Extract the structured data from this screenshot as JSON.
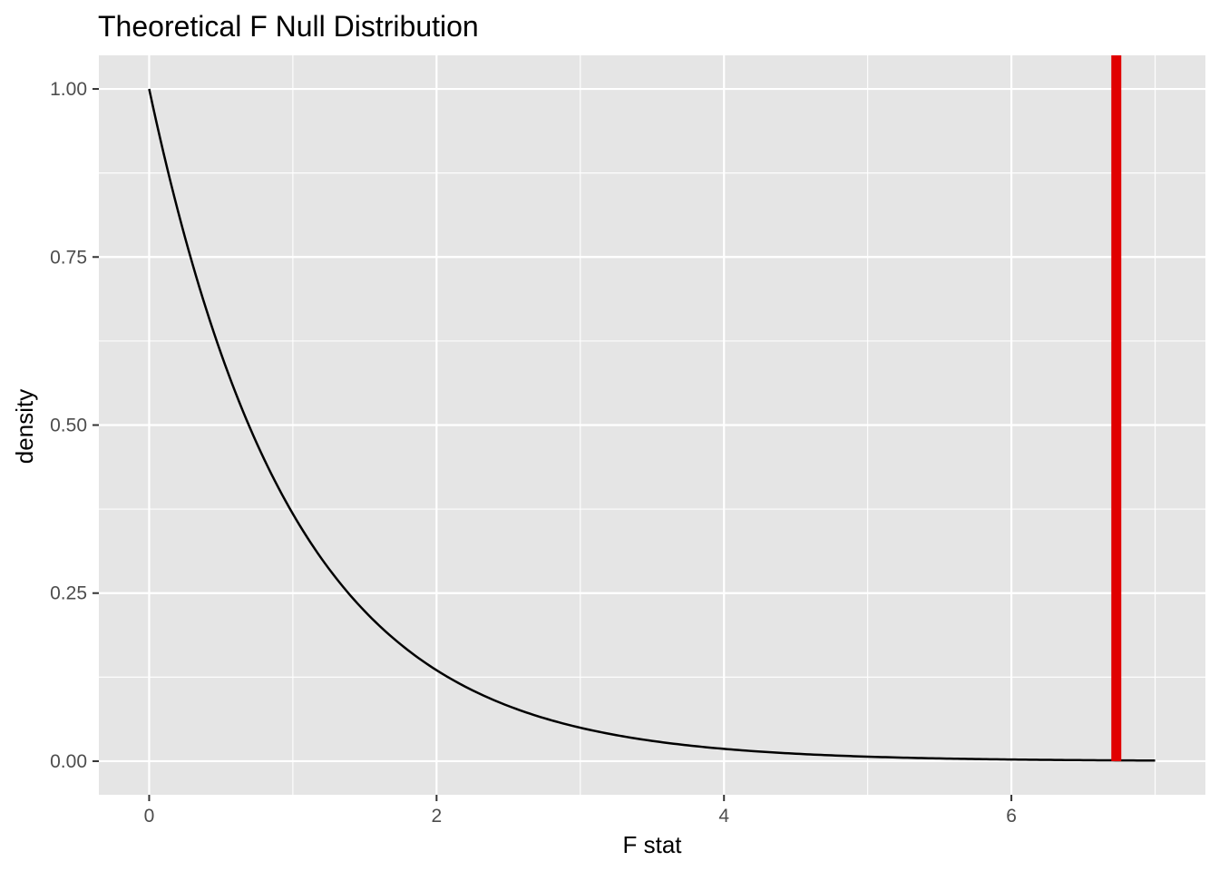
{
  "chart_data": {
    "type": "line",
    "title": "Theoretical F Null Distribution",
    "xlabel": "F stat",
    "ylabel": "density",
    "xlim": [
      -0.35,
      7.35
    ],
    "ylim": [
      -0.05,
      1.05
    ],
    "x_ticks": [
      0,
      2,
      4,
      6
    ],
    "x_tick_labels": [
      "0",
      "2",
      "4",
      "6"
    ],
    "x_minor_ticks": [
      1,
      3,
      5,
      7
    ],
    "y_ticks": [
      0,
      0.25,
      0.5,
      0.75,
      1
    ],
    "y_tick_labels": [
      "0.00",
      "0.25",
      "0.50",
      "0.75",
      "1.00"
    ],
    "y_minor_ticks": [
      0.125,
      0.375,
      0.625,
      0.875
    ],
    "grid": true,
    "legend": "none",
    "panel_color": "#e5e5e5",
    "grid_color": "#ffffff",
    "series": [
      {
        "color": "#000000",
        "x": [
          0,
          0.25,
          0.5,
          0.75,
          1,
          1.25,
          1.5,
          1.75,
          2,
          2.5,
          3,
          3.5,
          4,
          4.5,
          5,
          5.5,
          6,
          6.5,
          7
        ],
        "y": [
          1.0,
          0.779,
          0.607,
          0.472,
          0.368,
          0.287,
          0.223,
          0.174,
          0.135,
          0.082,
          0.05,
          0.03,
          0.018,
          0.011,
          0.007,
          0.004,
          0.002,
          0.0015,
          0.001
        ]
      }
    ],
    "annotations": [
      {
        "type": "vline",
        "x": 6.73,
        "color": "#e00000"
      }
    ]
  }
}
